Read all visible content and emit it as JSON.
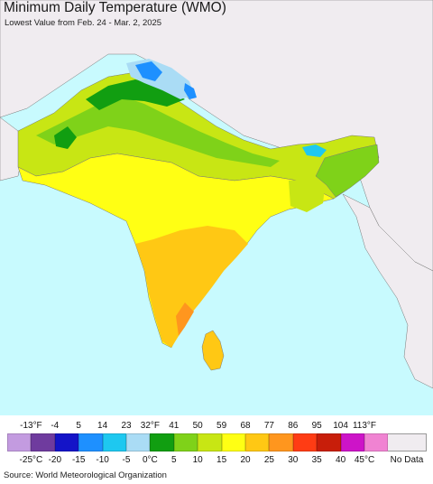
{
  "header": {
    "title": "Minimum Daily Temperature (WMO)",
    "subtitle": "Lowest Value from Feb. 24 - Mar. 2, 2025"
  },
  "map": {
    "background_land_no_data": "#f0ecf0",
    "ocean_color": "#c8fafe",
    "region": "South Asia"
  },
  "legend": {
    "fahrenheit_ticks": [
      "-13°F",
      "-4",
      "5",
      "14",
      "23",
      "32°F",
      "41",
      "50",
      "59",
      "68",
      "77",
      "86",
      "95",
      "104",
      "113°F"
    ],
    "celsius_ticks": [
      "-25°C",
      "-20",
      "-15",
      "-10",
      "-5",
      "0°C",
      "5",
      "10",
      "15",
      "20",
      "25",
      "30",
      "35",
      "40",
      "45°C"
    ],
    "colors": [
      "#c39be0",
      "#6f3b9e",
      "#1414c8",
      "#1e90ff",
      "#1ec8f0",
      "#aadcf5",
      "#119e11",
      "#7fd219",
      "#c8e614",
      "#ffff14",
      "#ffc814",
      "#ff961e",
      "#ff3c14",
      "#c81e0a",
      "#cd14c8",
      "#f083d2"
    ],
    "no_data_color": "#f0ecf0",
    "no_data_label": "No Data"
  },
  "footer": {
    "source": "Source: World Meteorological Organization"
  }
}
